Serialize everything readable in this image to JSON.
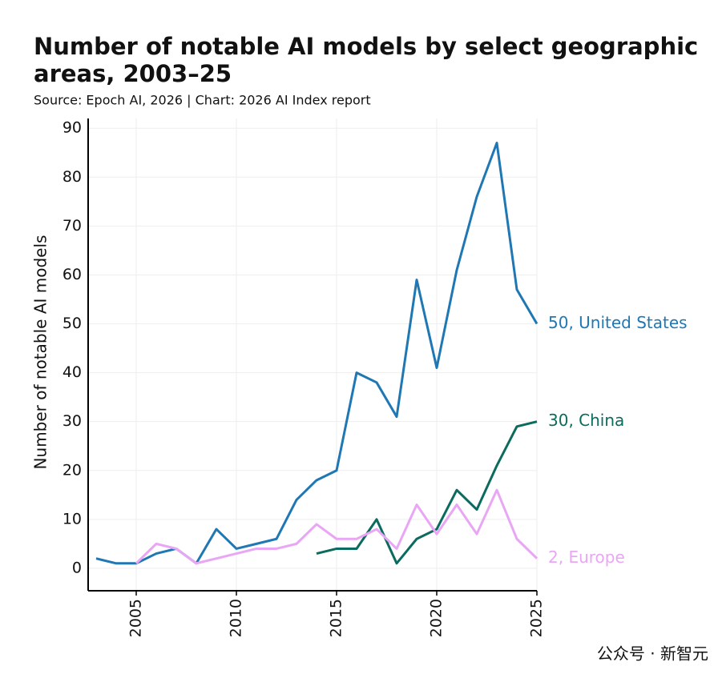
{
  "chart_data": {
    "type": "line",
    "title": [
      "Number of notable AI models by select geographic",
      "areas, 2003–25"
    ],
    "subtitle": "Source: Epoch AI, 2026 | Chart: 2026 AI Index report",
    "y_label": "Number of notable AI models",
    "x": [
      2003,
      2004,
      2005,
      2006,
      2007,
      2008,
      2009,
      2010,
      2011,
      2012,
      2013,
      2014,
      2015,
      2016,
      2017,
      2018,
      2019,
      2020,
      2021,
      2022,
      2023,
      2024,
      2025
    ],
    "series": [
      {
        "label": "50, United States",
        "color": "#1f77b4",
        "values": [
          2,
          1,
          1,
          3,
          4,
          1,
          8,
          4,
          5,
          6,
          14,
          18,
          20,
          40,
          38,
          31,
          59,
          41,
          61,
          76,
          87,
          57,
          50
        ]
      },
      {
        "label": "30, China",
        "color": "#0b6b5e",
        "values": [
          null,
          null,
          null,
          null,
          null,
          null,
          null,
          null,
          null,
          null,
          null,
          3,
          4,
          4,
          10,
          1,
          6,
          8,
          16,
          12,
          21,
          29,
          30
        ]
      },
      {
        "label": "2, Europe",
        "color": "#e9a6f5",
        "values": [
          null,
          null,
          1,
          5,
          4,
          1,
          2,
          3,
          4,
          4,
          5,
          9,
          6,
          6,
          8,
          4,
          13,
          7,
          13,
          7,
          16,
          6,
          2
        ]
      }
    ],
    "xlim": [
      2002.6,
      2025
    ],
    "ylim": [
      -4.6,
      92
    ],
    "xticks": [
      2005,
      2010,
      2015,
      2020,
      2025
    ],
    "yticks": [
      0,
      10,
      20,
      30,
      40,
      50,
      60,
      70,
      80,
      90
    ],
    "grid": true,
    "watermark": "公众号 · 新智元"
  }
}
